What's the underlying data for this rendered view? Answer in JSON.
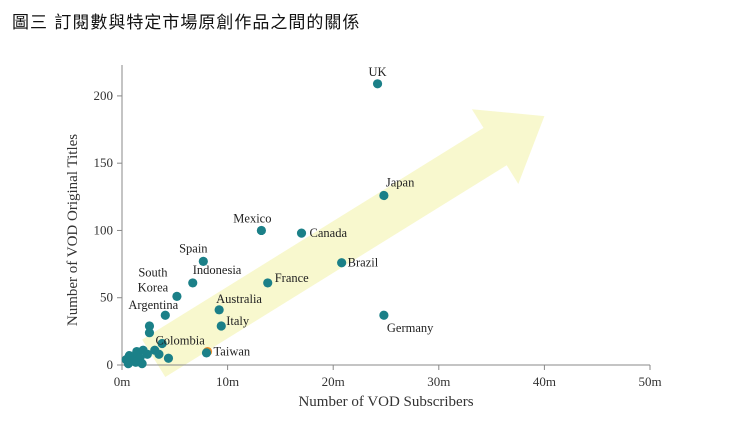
{
  "page": {
    "title": "圖三  訂閱數與特定市場原創作品之間的關係"
  },
  "chart_data": {
    "type": "scatter",
    "title": "",
    "xlabel": "Number of VOD Subscribers",
    "ylabel": "Number of VOD Original Titles",
    "xlim": [
      0,
      50
    ],
    "ylim": [
      0,
      220
    ],
    "xticks": [
      0,
      10,
      20,
      30,
      40,
      50
    ],
    "xtick_labels": [
      "0m",
      "10m",
      "20m",
      "30m",
      "40m",
      "50m"
    ],
    "yticks": [
      0,
      50,
      100,
      150,
      200
    ],
    "ytick_labels": [
      "0",
      "50",
      "100",
      "150",
      "200"
    ],
    "x_unit": "m",
    "grid": false,
    "trend_arrow": {
      "from": [
        3,
        5
      ],
      "to": [
        40,
        185
      ],
      "color": "#f7f7c9"
    },
    "point_color": "#1b8088",
    "highlight_color": "#e88a2a",
    "points": [
      {
        "name": "UK",
        "x": 24.2,
        "y": 209
      },
      {
        "name": "Japan",
        "x": 24.8,
        "y": 126
      },
      {
        "name": "Mexico",
        "x": 13.2,
        "y": 100
      },
      {
        "name": "Canada",
        "x": 17.0,
        "y": 98
      },
      {
        "name": "Spain",
        "x": 7.7,
        "y": 77
      },
      {
        "name": "Brazil",
        "x": 20.8,
        "y": 76
      },
      {
        "name": "Indonesia",
        "x": 6.7,
        "y": 61
      },
      {
        "name": "France",
        "x": 13.8,
        "y": 61
      },
      {
        "name": "South Korea",
        "x": 5.2,
        "y": 51
      },
      {
        "name": "Australia",
        "x": 9.2,
        "y": 41
      },
      {
        "name": "Argentina",
        "x": 4.1,
        "y": 37
      },
      {
        "name": "Germany",
        "x": 24.8,
        "y": 37
      },
      {
        "name": "Italy",
        "x": 9.4,
        "y": 29
      },
      {
        "name": "Colombia",
        "x": 2.6,
        "y": 24
      },
      {
        "name": "Taiwan",
        "x": 8.1,
        "y": 10,
        "highlight": true
      },
      {
        "name": "",
        "x": 2.6,
        "y": 29
      },
      {
        "name": "",
        "x": 3.8,
        "y": 16
      },
      {
        "name": "",
        "x": 3.1,
        "y": 11
      },
      {
        "name": "",
        "x": 3.5,
        "y": 8
      },
      {
        "name": "",
        "x": 2.4,
        "y": 8
      },
      {
        "name": "",
        "x": 2.0,
        "y": 11
      },
      {
        "name": "",
        "x": 1.4,
        "y": 10
      },
      {
        "name": "",
        "x": 1.1,
        "y": 6
      },
      {
        "name": "",
        "x": 0.7,
        "y": 7
      },
      {
        "name": "",
        "x": 1.7,
        "y": 5
      },
      {
        "name": "",
        "x": 0.4,
        "y": 4
      },
      {
        "name": "",
        "x": 0.9,
        "y": 3
      },
      {
        "name": "",
        "x": 1.3,
        "y": 2
      },
      {
        "name": "",
        "x": 0.6,
        "y": 1
      },
      {
        "name": "",
        "x": 1.9,
        "y": 1
      },
      {
        "name": "",
        "x": 4.4,
        "y": 5
      },
      {
        "name": "",
        "x": 8.0,
        "y": 9
      }
    ]
  }
}
